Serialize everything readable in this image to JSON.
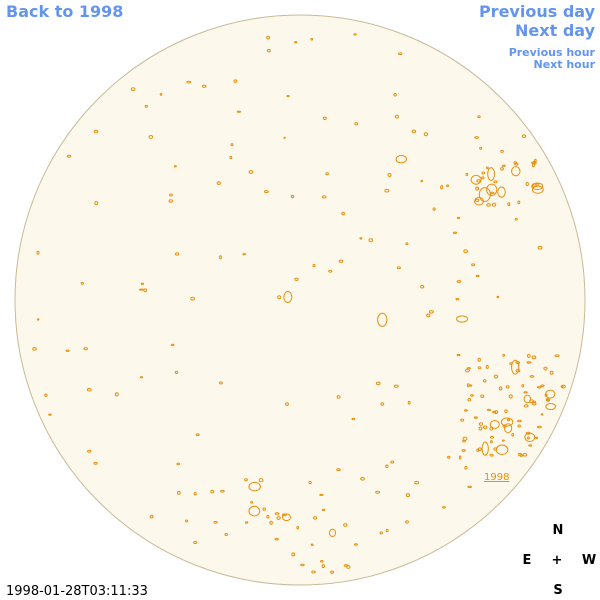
{
  "navigation": {
    "back": "Back to 1998",
    "previous_day": "Previous day",
    "next_day": "Next day",
    "previous_hour": "Previous hour",
    "next_hour": "Next hour"
  },
  "region_label": "1998",
  "timestamp": "1998-01-28T03:11:33",
  "compass": {
    "north": "N",
    "east": "E",
    "center": "+",
    "west": "W",
    "south": "S"
  }
}
